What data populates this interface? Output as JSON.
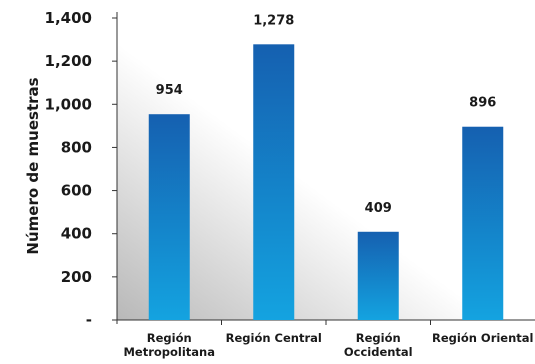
{
  "chart_data": {
    "type": "bar",
    "categories": [
      [
        "Región",
        "Metropolitana"
      ],
      [
        "Región Central"
      ],
      [
        "Región",
        "Occidental"
      ],
      [
        "Región Oriental"
      ]
    ],
    "values": [
      954,
      1278,
      409,
      896
    ],
    "value_labels": [
      "954",
      "1,278",
      "409",
      "896"
    ],
    "ylabel": "Número de muestras",
    "ylim": [
      0,
      1400
    ],
    "yticks": [
      0,
      200,
      400,
      600,
      800,
      1000,
      1200,
      1400
    ],
    "ytick_labels": [
      "-",
      "200",
      "400",
      "600",
      "800",
      "1,000",
      "1,200",
      "1,400"
    ],
    "grid": false,
    "colors": {
      "bar_top": "#1560b0",
      "bar_bottom": "#14a3e0",
      "plot_bg_light": "#ffffff",
      "plot_bg_dark": "#b8b8b8",
      "text": "#1a1a1a"
    }
  }
}
